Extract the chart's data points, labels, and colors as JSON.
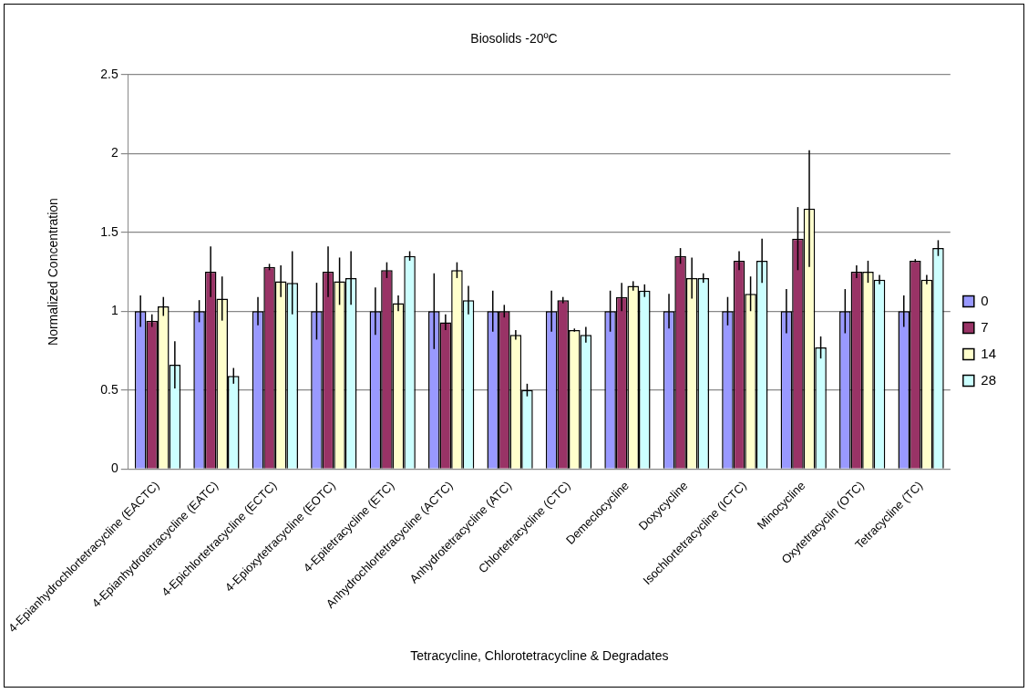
{
  "chart_data": {
    "type": "bar",
    "title": "Biosolids -20ºC",
    "xlabel": "Tetracycline, Chlorotetracycline & Degradates",
    "ylabel": "Normalized Concentration",
    "categories": [
      "4-Epianhydrochlortetracycline (EACTC)",
      "4-Epianhydrotetracycline (EATC)",
      "4-Epichlortetracycline (ECTC)",
      "4-Epioxytetracycline (EOTC)",
      "4-Epitetracycline (ETC)",
      "Anhydrochlortetracycline (ACTC)",
      "Anhydrotetracycline (ATC)",
      "Chlortetracycline (CTC)",
      "Demeclocycline",
      "Doxycycline",
      "Isochlortetracycline (ICTC)",
      "Minocycline",
      "Oxytetracyclin (OTC)",
      "Tetracycline (TC)"
    ],
    "series": [
      {
        "name": "0",
        "color": "#9999ff",
        "values": [
          1,
          1,
          1,
          1,
          1,
          1,
          1,
          1,
          1,
          1,
          1,
          1,
          1,
          1
        ],
        "errors": [
          0.1,
          0.07,
          0.09,
          0.18,
          0.15,
          0.24,
          0.13,
          0.13,
          0.13,
          0.11,
          0.09,
          0.14,
          0.14,
          0.1
        ]
      },
      {
        "name": "7",
        "color": "#993366",
        "values": [
          0.94,
          1.25,
          1.28,
          1.25,
          1.26,
          0.93,
          1.0,
          1.07,
          1.09,
          1.35,
          1.32,
          1.46,
          1.25,
          1.32
        ],
        "errors": [
          0.04,
          0.16,
          0.02,
          0.16,
          0.05,
          0.05,
          0.04,
          0.02,
          0.09,
          0.05,
          0.06,
          0.2,
          0.04,
          0.01
        ]
      },
      {
        "name": "14",
        "color": "#ffffcc",
        "values": [
          1.03,
          1.08,
          1.19,
          1.19,
          1.05,
          1.26,
          0.85,
          0.88,
          1.16,
          1.21,
          1.11,
          1.65,
          1.25,
          1.2
        ],
        "errors": [
          0.06,
          0.14,
          0.1,
          0.15,
          0.05,
          0.05,
          0.03,
          0.01,
          0.03,
          0.13,
          0.11,
          0.37,
          0.07,
          0.03
        ]
      },
      {
        "name": "28",
        "color": "#ccffff",
        "values": [
          0.66,
          0.59,
          1.18,
          1.21,
          1.35,
          1.07,
          0.5,
          0.85,
          1.13,
          1.21,
          1.32,
          0.77,
          1.2,
          1.4
        ],
        "errors": [
          0.15,
          0.05,
          0.2,
          0.17,
          0.03,
          0.09,
          0.04,
          0.05,
          0.04,
          0.03,
          0.14,
          0.07,
          0.03,
          0.05
        ]
      }
    ],
    "ylim": [
      0,
      2.5
    ],
    "yticks": [
      0,
      0.5,
      1,
      1.5,
      2,
      2.5
    ],
    "grid": "y",
    "legend": "right"
  }
}
